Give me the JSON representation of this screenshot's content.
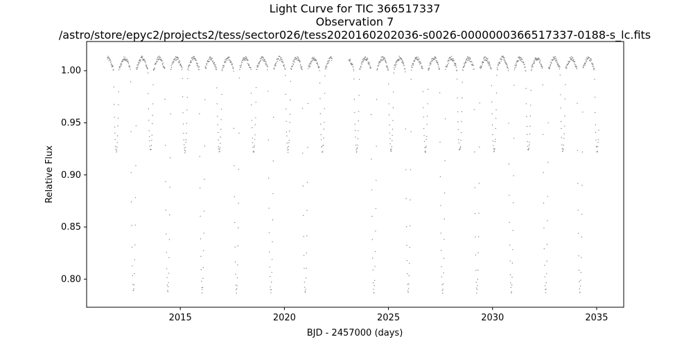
{
  "chart_data": {
    "type": "scatter",
    "title_lines": [
      "Light Curve for TIC 366517337",
      "Observation 7",
      "/astro/store/epyc2/projects2/tess/sector026/tess2020160202036-s0026-0000000366517337-0188-s_lc.fits"
    ],
    "xlabel": "BJD - 2457000 (days)",
    "ylabel": "Relative Flux",
    "xlim": [
      2010.5,
      2036.3
    ],
    "ylim": [
      0.773,
      1.028
    ],
    "xticks": [
      2015,
      2020,
      2025,
      2030,
      2035
    ],
    "xtick_labels": [
      "2015",
      "2020",
      "2025",
      "2030",
      "2035"
    ],
    "yticks": [
      0.8,
      0.85,
      0.9,
      0.95,
      1.0
    ],
    "ytick_labels": [
      "0.80",
      "0.85",
      "0.90",
      "0.95",
      "1.00"
    ],
    "grid": false,
    "marker_color": "#808080",
    "segments": [
      [
        2011.5,
        2022.3
      ],
      [
        2023.1,
        2035.1
      ]
    ],
    "model": {
      "period_days": 1.65,
      "primary_epoch": 2012.75,
      "primary_depth": 0.21,
      "primary_halfwidth_days": 0.14,
      "secondary_depth": 0.075,
      "secondary_halfwidth_days": 0.13,
      "baseline": 1.005,
      "ellipsoidal_amplitude": 0.007
    }
  }
}
